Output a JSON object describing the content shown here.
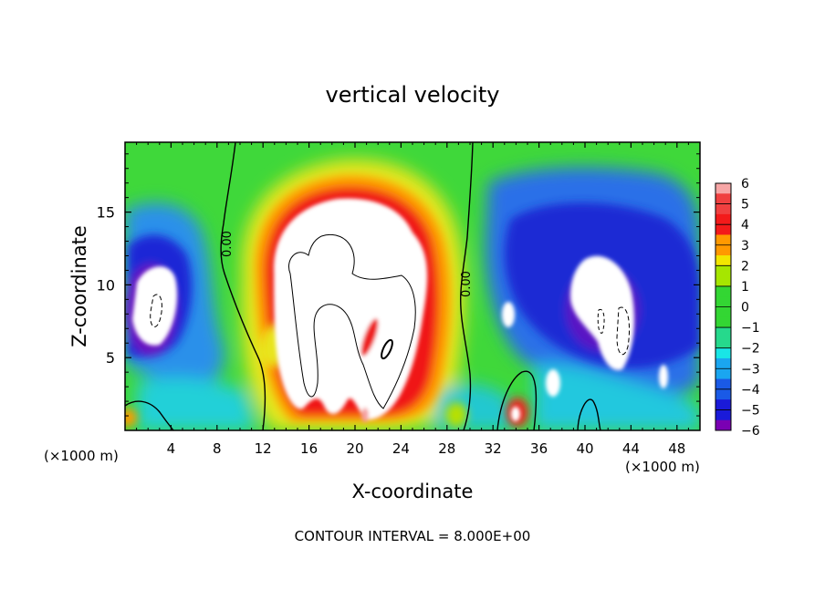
{
  "chart_data": {
    "type": "heatmap",
    "title": "vertical velocity",
    "xlabel": "X-coordinate",
    "ylabel": "Z-coordinate",
    "x_unit_left": "(×1000 m)",
    "x_unit_right": "(×1000 m)",
    "footer": "CONTOUR INTERVAL = 8.000E+00",
    "x_ticks": [
      "4",
      "8",
      "12",
      "16",
      "20",
      "24",
      "28",
      "32",
      "36",
      "40",
      "44",
      "48"
    ],
    "x_tick_values": [
      4,
      8,
      12,
      16,
      20,
      24,
      28,
      32,
      36,
      40,
      44,
      48
    ],
    "y_ticks": [
      "5",
      "10",
      "15"
    ],
    "y_tick_values": [
      5,
      10,
      15
    ],
    "xlim": [
      0,
      50
    ],
    "ylim": [
      0,
      19.8
    ],
    "colorbar_ticks": [
      "6",
      "5",
      "4",
      "3",
      "2",
      "1",
      "0",
      "−1",
      "−2",
      "−3",
      "−4",
      "−5",
      "−6"
    ],
    "colorbar_levels": [
      6,
      5,
      4,
      3,
      2,
      1,
      0,
      -1,
      -2,
      -3,
      -4,
      -5,
      -6
    ],
    "contour_labels": [
      "0.00",
      "0.00"
    ],
    "colors": {
      "pos6": "#f7a6a6",
      "pos5": "#f04040",
      "pos4": "#f31a1a",
      "pos3": "#ff9900",
      "pos2": "#f2e600",
      "pos1": "#a6e600",
      "zero": "#33d633",
      "neg1": "#26d98c",
      "neg2": "#19e6e6",
      "neg3": "#1aa6f0",
      "neg4": "#1a5ae6",
      "neg5": "#1a1ad9",
      "neg6": "#7a00b3",
      "saturated": "#ffffff",
      "contour": "#000000"
    }
  }
}
